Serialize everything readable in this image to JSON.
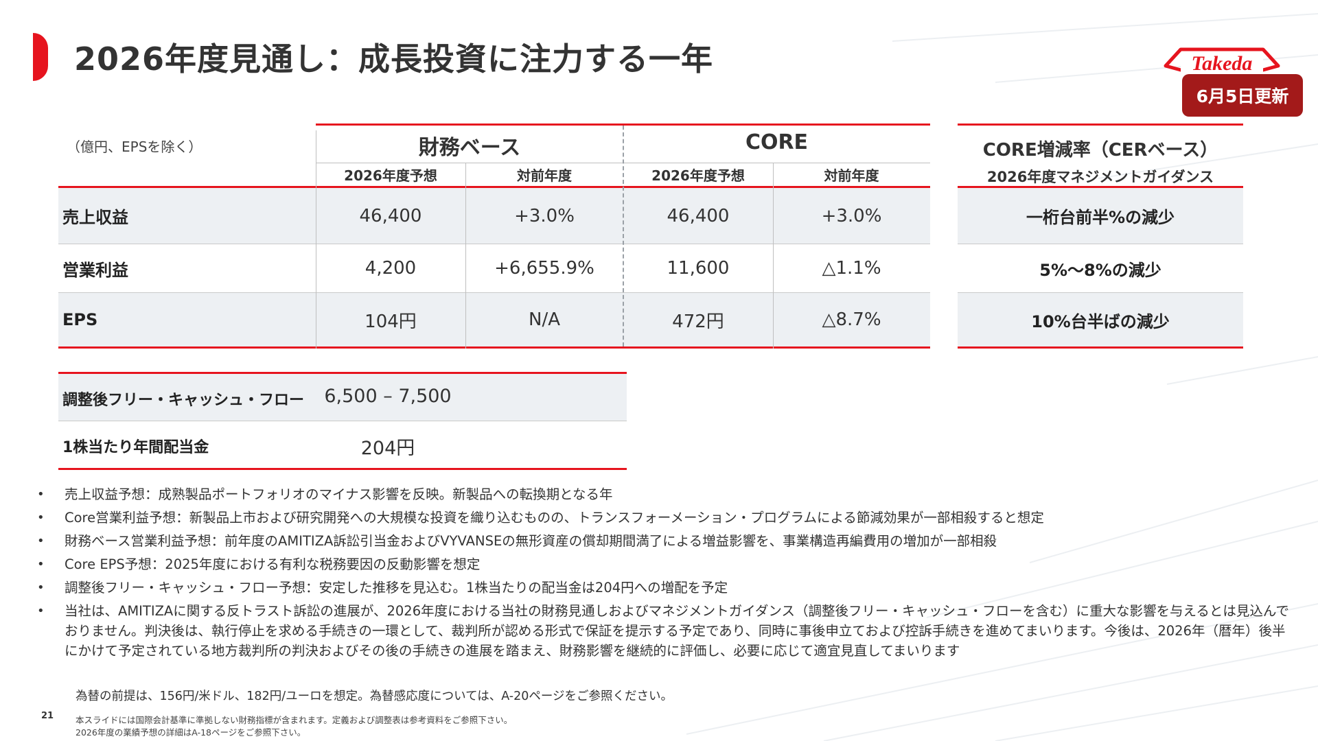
{
  "header": {
    "title": "2026年度見通し：成長投資に注力する一年",
    "logo_text": "Takeda",
    "update_badge": "6月5日更新"
  },
  "main_table": {
    "unit_note": "（億円、EPSを除く）",
    "groups": [
      {
        "label": "財務ベース",
        "columns": [
          "2026年度予想",
          "対前年度"
        ]
      },
      {
        "label": "CORE",
        "columns": [
          "2026年度予想",
          "対前年度"
        ]
      }
    ],
    "rows": [
      {
        "label": "売上収益",
        "values": [
          "46,400",
          "+3.0%",
          "46,400",
          "+3.0%"
        ]
      },
      {
        "label": "営業利益",
        "values": [
          "4,200",
          "+6,655.9%",
          "11,600",
          "△1.1%"
        ]
      },
      {
        "label": "EPS",
        "values": [
          "104円",
          "N/A",
          "472円",
          "△8.7%"
        ]
      }
    ]
  },
  "guidance_table": {
    "title": "CORE増減率（CERベース）",
    "subtitle": "2026年度マネジメントガイダンス",
    "rows": [
      "一桁台前半%の減少",
      "5%～8%の減少",
      "10%台半ばの減少"
    ]
  },
  "cash_table": {
    "rows": [
      {
        "label": "調整後フリー・キャッシュ・フロー",
        "value": "6,500 – 7,500"
      },
      {
        "label": "1株当たり年間配当金",
        "value": "204円"
      }
    ]
  },
  "bullets": [
    "売上収益予想：成熟製品ポートフォリオのマイナス影響を反映。新製品への転換期となる年",
    "Core営業利益予想：新製品上市および研究開発への大規模な投資を織り込むものの、トランスフォーメーション・プログラムによる節減効果が一部相殺すると想定",
    "財務ベース営業利益予想：前年度のAMITIZA訴訟引当金およびVYVANSEの無形資産の償却期間満了による増益影響を、事業構造再編費用の増加が一部相殺",
    "Core EPS予想：2025年度における有利な税務要因の反動影響を想定",
    "調整後フリー・キャッシュ・フロー予想：安定した推移を見込む。1株当たりの配当金は204円への増配を予定",
    "当社は、AMITIZAに関する反トラスト訴訟の進展が、2026年度における当社の財務見通しおよびマネジメントガイダンス（調整後フリー・キャッシュ・フローを含む）に重大な影響を与えるとは見込んでおりません。判決後は、執行停止を求める手続きの一環として、裁判所が認める形式で保証を提示する予定であり、同時に事後申立ておよび控訴手続きを進めてまいります。今後は、2026年（暦年）後半にかけて予定されている地方裁判所の判決およびその後の手続きの進展を踏まえ、財務影響を継続的に評価し、必要に応じて適宜見直してまいります"
  ],
  "footer": {
    "fx_note": "為替の前提は、156円/米ドル、182円/ユーロを想定。為替感応度については、A-20ページをご参照ください。",
    "page_number": "21",
    "notes": [
      "本スライドには国際会計基準に準拠しない財務指標が含まれます。定義および調整表は参考資料をご参照下さい。",
      "2026年度の業績予想の詳細はA-18ページをご参照下さい。"
    ]
  },
  "colors": {
    "accent_red": "#e6141e",
    "badge_red": "#a31a1a",
    "row_shade": "#edf0f3"
  }
}
